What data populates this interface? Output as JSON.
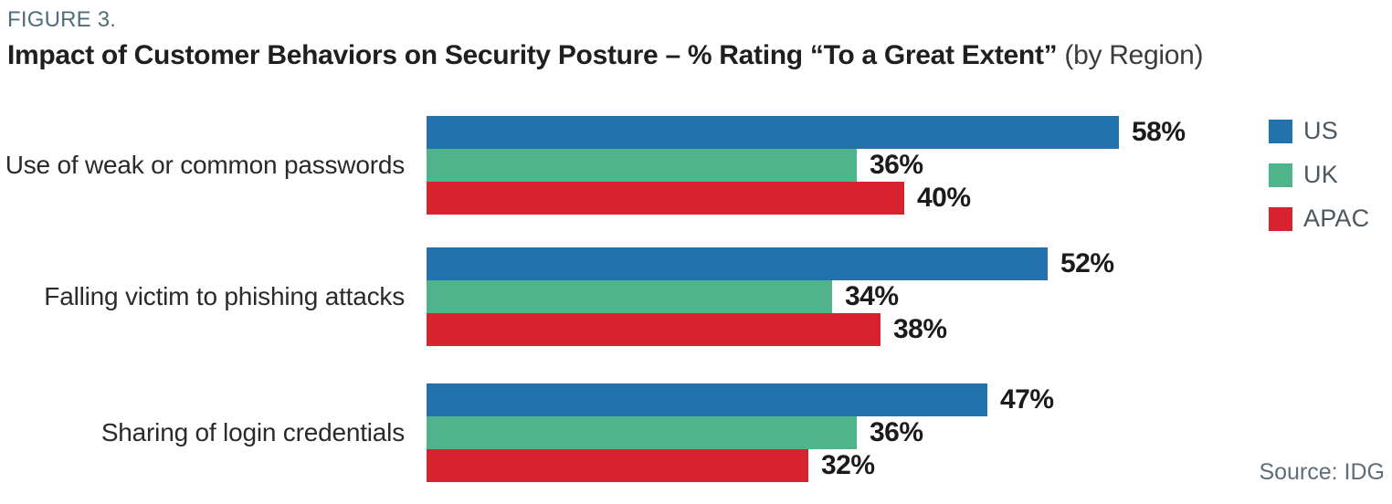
{
  "header": {
    "figure_label": "FIGURE 3.",
    "title_bold": "Impact of Customer Behaviors on Security Posture – % Rating “To a Great Extent”",
    "title_suffix": " (by Region)"
  },
  "source_label": "Source: IDG",
  "colors": {
    "us_blue": "#2272ae",
    "uk_green": "#4fb38c",
    "apac_red": "#d8232f",
    "figure_label_text": "#4f6d7a",
    "legend_text": "#4b5761",
    "source_text": "#5d6e78"
  },
  "chart_data": {
    "type": "bar",
    "orientation": "horizontal",
    "title": "Impact of Customer Behaviors on Security Posture – % Rating “To a Great Extent” (by Region)",
    "categories": [
      "Use of weak or common passwords",
      "Falling victim to phishing attacks",
      "Sharing of login credentials"
    ],
    "series": [
      {
        "name": "US",
        "color": "#2272ae",
        "values": [
          58,
          52,
          47
        ]
      },
      {
        "name": "UK",
        "color": "#4fb38c",
        "values": [
          36,
          34,
          36
        ]
      },
      {
        "name": "APAC",
        "color": "#d8232f",
        "values": [
          40,
          38,
          32
        ]
      }
    ],
    "value_suffix": "%",
    "xlim": [
      0,
      60
    ],
    "grid": false,
    "legend_position": "top-right",
    "value_labels": "end-of-bar"
  }
}
